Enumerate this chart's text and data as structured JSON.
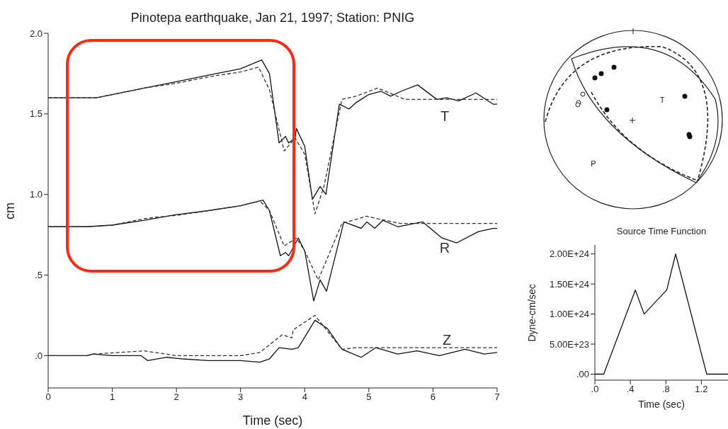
{
  "chart_data": [
    {
      "type": "line",
      "title": "Pinotepa earthquake, Jan 21, 1997; Station: PNIG",
      "xlabel": "Time (sec)",
      "ylabel": "cm",
      "xlim": [
        0,
        7
      ],
      "xticks": [
        0,
        1,
        2,
        3,
        4,
        5,
        6,
        7
      ],
      "ylim": [
        -0.2,
        2.0
      ],
      "yticks": [
        {
          "value": 0,
          "label": ".0"
        },
        {
          "value": 0.5,
          "label": ".5"
        },
        {
          "value": 1,
          "label": "1.0"
        },
        {
          "value": 1.5,
          "label": "1.5"
        },
        {
          "value": 2,
          "label": "2.0"
        }
      ],
      "marker": "none",
      "series": [
        {
          "color": "#111111",
          "line_style": "solid",
          "x": [
            0,
            0.6,
            0.75,
            1,
            1.5,
            2,
            2.5,
            3,
            3.33,
            3.45,
            3.6,
            3.7,
            3.75,
            3.85,
            3.87,
            4.0,
            4.12,
            4.24,
            4.33,
            4.54,
            4.69,
            4.8,
            5.0,
            5.19,
            5.34,
            5.5,
            5.76,
            6.06,
            6.21,
            6.4,
            6.67,
            6.94,
            7
          ],
          "values": [
            1.6,
            1.6,
            1.6,
            1.62,
            1.66,
            1.7,
            1.74,
            1.78,
            1.835,
            1.75,
            1.32,
            1.36,
            1.32,
            1.35,
            1.41,
            1.3,
            0.97,
            1.05,
            1.0,
            1.56,
            1.53,
            1.57,
            1.62,
            1.64,
            1.61,
            1.64,
            1.68,
            1.59,
            1.6,
            1.58,
            1.63,
            1.56,
            1.56
          ]
        },
        {
          "color": "#333333",
          "line_style": "dashed",
          "x": [
            0,
            0.6,
            0.75,
            1,
            1.5,
            2,
            2.5,
            3,
            3.28,
            3.45,
            3.68,
            3.85,
            4.0,
            4.16,
            4.3,
            4.58,
            4.8,
            5.14,
            5.56,
            6,
            7
          ],
          "values": [
            1.6,
            1.6,
            1.6,
            1.62,
            1.66,
            1.69,
            1.73,
            1.76,
            1.79,
            1.65,
            1.27,
            1.35,
            1.25,
            0.88,
            1.05,
            1.59,
            1.61,
            1.66,
            1.59,
            1.59,
            1.59
          ]
        },
        {
          "color": "#111111",
          "line_style": "solid",
          "x": [
            0,
            0.6,
            1,
            1.5,
            2,
            2.5,
            3,
            3.35,
            3.45,
            3.62,
            3.7,
            3.75,
            3.9,
            4.0,
            4.14,
            4.24,
            4.34,
            4.61,
            4.88,
            4.97,
            5.09,
            5.22,
            5.45,
            5.84,
            6.14,
            6.37,
            6.71,
            6.94,
            7
          ],
          "values": [
            0.8,
            0.8,
            0.81,
            0.84,
            0.875,
            0.9,
            0.93,
            0.965,
            0.9,
            0.62,
            0.64,
            0.62,
            0.73,
            0.65,
            0.34,
            0.47,
            0.4,
            0.83,
            0.79,
            0.83,
            0.79,
            0.84,
            0.8,
            0.83,
            0.73,
            0.7,
            0.77,
            0.79,
            0.79
          ]
        },
        {
          "color": "#333333",
          "line_style": "dashed",
          "x": [
            0,
            0.6,
            1,
            1.5,
            1.7,
            2,
            2.5,
            3,
            3.3,
            3.45,
            3.68,
            3.87,
            4.0,
            4.21,
            4.58,
            4.96,
            5.49,
            6,
            7
          ],
          "values": [
            0.8,
            0.8,
            0.81,
            0.85,
            0.86,
            0.87,
            0.9,
            0.93,
            0.96,
            0.9,
            0.68,
            0.73,
            0.65,
            0.47,
            0.82,
            0.865,
            0.82,
            0.82,
            0.82
          ]
        },
        {
          "color": "#111111",
          "line_style": "solid",
          "x": [
            0,
            0.6,
            0.7,
            1.0,
            1.45,
            1.55,
            1.85,
            2.1,
            2.5,
            3.0,
            3.3,
            3.45,
            3.6,
            3.8,
            3.9,
            4.16,
            4.35,
            4.58,
            4.88,
            5.11,
            5.45,
            5.75,
            6.1,
            6.5,
            6.8,
            7
          ],
          "values": [
            0,
            0,
            0.01,
            0.0,
            0.0,
            -0.03,
            -0.01,
            -0.02,
            -0.03,
            -0.03,
            -0.04,
            -0.02,
            0.05,
            0.04,
            0.05,
            0.22,
            0.17,
            0.04,
            -0.01,
            0.05,
            0.01,
            0.03,
            0.0,
            0.04,
            0.01,
            0.02
          ]
        },
        {
          "color": "#333333",
          "line_style": "dashed",
          "x": [
            0,
            0.6,
            0.7,
            1.5,
            2.0,
            3.0,
            3.3,
            3.65,
            3.8,
            3.82,
            4.16,
            4.58,
            4.8,
            7
          ],
          "values": [
            0,
            0,
            0.01,
            0.03,
            0.0,
            0.0,
            0.02,
            0.13,
            0.11,
            0.16,
            0.25,
            0.04,
            0.05,
            0.05
          ]
        }
      ],
      "annotations": [
        "T",
        "R",
        "Z"
      ]
    },
    {
      "type": "line",
      "title": "Source Time Function",
      "xlabel": "Time (sec)",
      "ylabel": "Dyne-cm/sec",
      "xlim": [
        0,
        1.5
      ],
      "xticks": [
        {
          "value": 0,
          "label": ".0"
        },
        {
          "value": 0.4,
          "label": ".4"
        },
        {
          "value": 0.8,
          "label": ".8"
        },
        {
          "value": 1.2,
          "label": "1.2"
        }
      ],
      "ylim": [
        -1e+23,
        2.15e+24
      ],
      "yticks": [
        {
          "value": 0,
          "label": ".00"
        },
        {
          "value": 5e+23,
          "label": "5.00E+23"
        },
        {
          "value": 1e+24,
          "label": "1.00E+24"
        },
        {
          "value": 1.5e+24,
          "label": "1.50E+24"
        },
        {
          "value": 2e+24,
          "label": "2.00E+24"
        }
      ],
      "marker": "none",
      "series": [
        {
          "color": "#111111",
          "line_style": "solid",
          "x": [
            0,
            0.1,
            0.456,
            0.555,
            0.81,
            0.91,
            1.26,
            1.5
          ],
          "values": [
            0,
            0,
            1.4e+24,
            1e+24,
            1.4e+24,
            2e+24,
            0,
            0
          ]
        }
      ]
    },
    {
      "type": "other",
      "annotations": [
        "T",
        "P"
      ]
    }
  ]
}
